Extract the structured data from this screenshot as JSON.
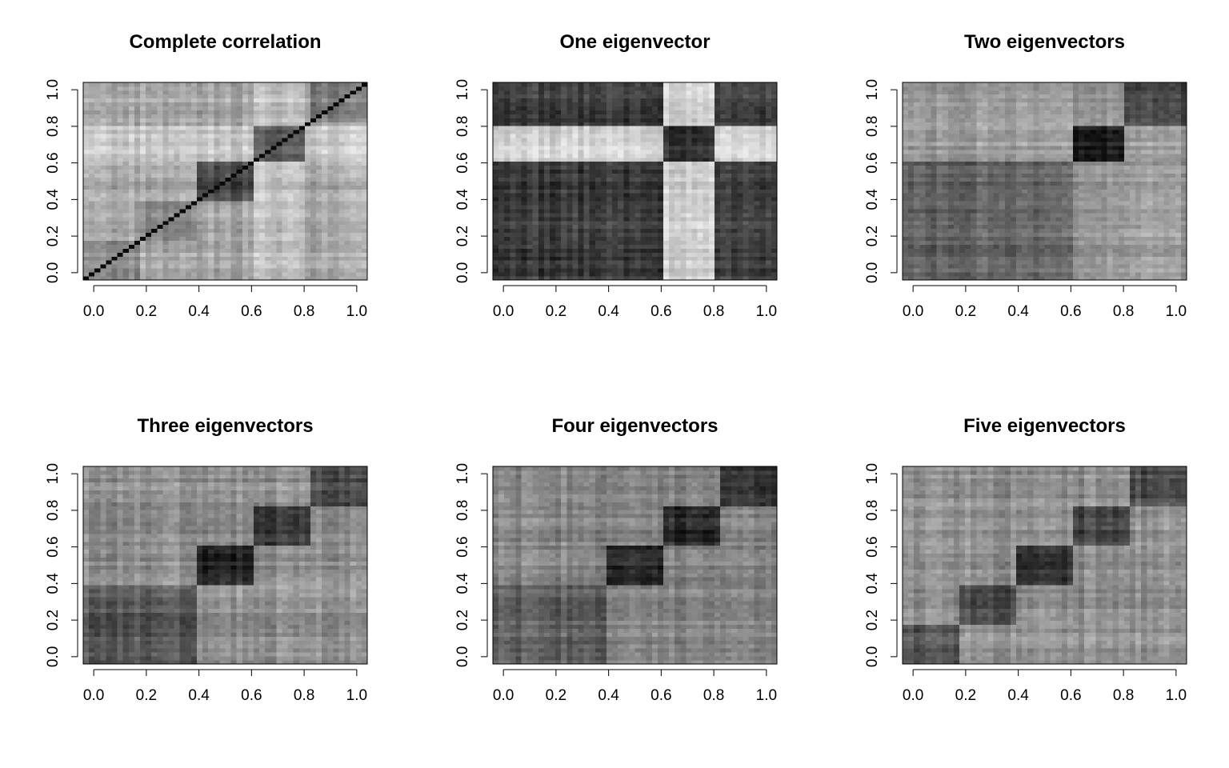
{
  "chart_data": [
    {
      "type": "heatmap",
      "title": "Complete correlation",
      "xlabel": "",
      "ylabel": "",
      "xlim": [
        0,
        1
      ],
      "ylim": [
        0,
        1
      ],
      "x_ticks": [
        "0.0",
        "0.2",
        "0.4",
        "0.6",
        "0.8",
        "1.0"
      ],
      "y_ticks": [
        "0.0",
        "0.2",
        "0.4",
        "0.6",
        "0.8",
        "1.0"
      ],
      "grid": false,
      "colormap": "grayscale",
      "blocks": [
        [
          0,
          0.2
        ],
        [
          0.2,
          0.4
        ],
        [
          0.4,
          0.6
        ],
        [
          0.6,
          0.8
        ],
        [
          0.8,
          1.0
        ]
      ],
      "block_darkness": [
        0.42,
        0.45,
        0.72,
        0.65,
        0.5
      ],
      "off_block_darkness": 0.3,
      "bright_bands": [
        [
          0.6,
          0.78
        ]
      ],
      "diagonal": true
    },
    {
      "type": "heatmap",
      "title": "One eigenvector",
      "xlabel": "",
      "ylabel": "",
      "xlim": [
        0,
        1
      ],
      "ylim": [
        0,
        1
      ],
      "x_ticks": [
        "0.0",
        "0.2",
        "0.4",
        "0.6",
        "0.8",
        "1.0"
      ],
      "y_ticks": [
        "0.0",
        "0.2",
        "0.4",
        "0.6",
        "0.8",
        "1.0"
      ],
      "grid": false,
      "colormap": "grayscale",
      "blocks": [
        [
          0.6,
          0.78
        ]
      ],
      "block_darkness": [
        0.85
      ],
      "off_block_darkness": 0.12,
      "base_darkness": 0.78,
      "diagonal": false
    },
    {
      "type": "heatmap",
      "title": "Two eigenvectors",
      "xlabel": "",
      "ylabel": "",
      "xlim": [
        0,
        1
      ],
      "ylim": [
        0,
        1
      ],
      "x_ticks": [
        "0.0",
        "0.2",
        "0.4",
        "0.6",
        "0.8",
        "1.0"
      ],
      "y_ticks": [
        "0.0",
        "0.2",
        "0.4",
        "0.6",
        "0.8",
        "1.0"
      ],
      "grid": false,
      "colormap": "grayscale",
      "blocks": [
        [
          0,
          0.6
        ],
        [
          0.6,
          0.78
        ],
        [
          0.78,
          1.0
        ]
      ],
      "block_darkness": [
        0.6,
        0.9,
        0.72
      ],
      "off_block_darkness": 0.35,
      "diagonal": false
    },
    {
      "type": "heatmap",
      "title": "Three eigenvectors",
      "xlabel": "",
      "ylabel": "",
      "xlim": [
        0,
        1
      ],
      "ylim": [
        0,
        1
      ],
      "x_ticks": [
        "0.0",
        "0.2",
        "0.4",
        "0.6",
        "0.8",
        "1.0"
      ],
      "y_ticks": [
        "0.0",
        "0.2",
        "0.4",
        "0.6",
        "0.8",
        "1.0"
      ],
      "grid": false,
      "colormap": "grayscale",
      "blocks": [
        [
          0,
          0.4
        ],
        [
          0.4,
          0.6
        ],
        [
          0.6,
          0.8
        ],
        [
          0.8,
          1.0
        ]
      ],
      "block_darkness": [
        0.65,
        0.88,
        0.75,
        0.72
      ],
      "off_block_darkness": 0.4,
      "diagonal": false
    },
    {
      "type": "heatmap",
      "title": "Four eigenvectors",
      "xlabel": "",
      "ylabel": "",
      "xlim": [
        0,
        1
      ],
      "ylim": [
        0,
        1
      ],
      "x_ticks": [
        "0.0",
        "0.2",
        "0.4",
        "0.6",
        "0.8",
        "1.0"
      ],
      "y_ticks": [
        "0.0",
        "0.2",
        "0.4",
        "0.6",
        "0.8",
        "1.0"
      ],
      "grid": false,
      "colormap": "grayscale",
      "blocks": [
        [
          0,
          0.4
        ],
        [
          0.4,
          0.6
        ],
        [
          0.6,
          0.8
        ],
        [
          0.8,
          1.0
        ]
      ],
      "block_darkness": [
        0.62,
        0.85,
        0.85,
        0.8
      ],
      "off_block_darkness": 0.45,
      "diagonal": false
    },
    {
      "type": "heatmap",
      "title": "Five eigenvectors",
      "xlabel": "",
      "ylabel": "",
      "xlim": [
        0,
        1
      ],
      "ylim": [
        0,
        1
      ],
      "x_ticks": [
        "0.0",
        "0.2",
        "0.4",
        "0.6",
        "0.8",
        "1.0"
      ],
      "y_ticks": [
        "0.0",
        "0.2",
        "0.4",
        "0.6",
        "0.8",
        "1.0"
      ],
      "grid": false,
      "colormap": "grayscale",
      "blocks": [
        [
          0,
          0.2
        ],
        [
          0.2,
          0.4
        ],
        [
          0.4,
          0.6
        ],
        [
          0.6,
          0.8
        ],
        [
          0.8,
          1.0
        ]
      ],
      "block_darkness": [
        0.68,
        0.7,
        0.82,
        0.72,
        0.7
      ],
      "off_block_darkness": 0.4,
      "diagonal": false
    }
  ]
}
